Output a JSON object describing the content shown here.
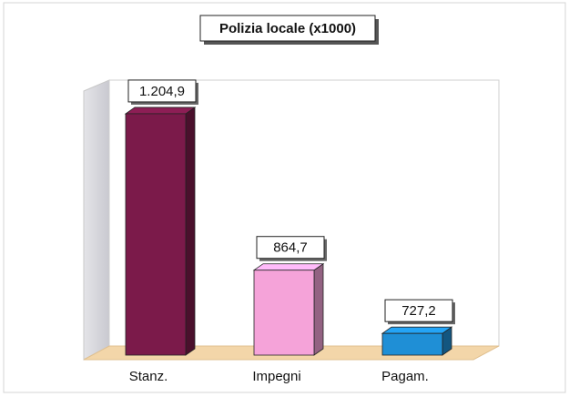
{
  "chart_data": {
    "type": "bar3d",
    "title": "Polizia locale (x1000)",
    "categories": [
      "Stanz.",
      "Impegni",
      "Pagam."
    ],
    "values": [
      1204.9,
      864.7,
      727.2
    ],
    "value_labels": [
      "1.204,9",
      "864,7",
      "727,2"
    ],
    "colors": [
      "#7b1a4a",
      "#f5a3d9",
      "#1f8fd6"
    ],
    "ylim": [
      680,
      1280
    ]
  }
}
